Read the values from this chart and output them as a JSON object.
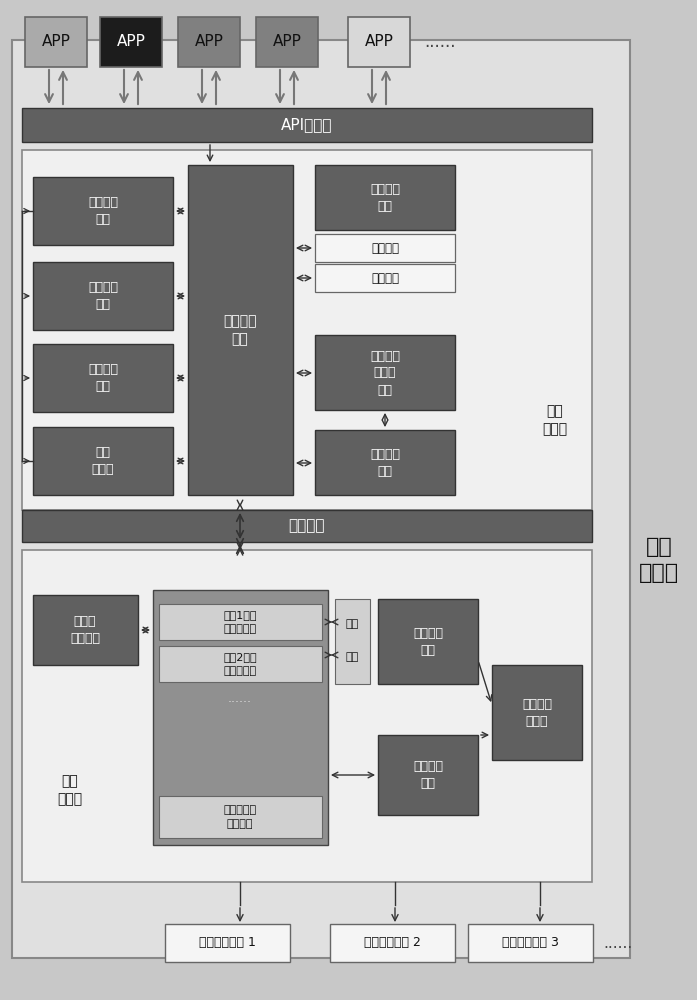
{
  "bg_color": "#c8c8c8",
  "outer_box_color": "#e0e0e0",
  "inner_box_color": "#f0f0f0",
  "dark_box": "#606060",
  "medium_box": "#909090",
  "light_box": "#d0d0d0",
  "white_box": "#f5f5f5",
  "app_colors": [
    "#aaaaaa",
    "#1c1c1c",
    "#808080",
    "#808080",
    "#d8d8d8"
  ],
  "app_labels": [
    "APP",
    "APP",
    "APP",
    "APP",
    "APP"
  ],
  "title": "网络\n控制器",
  "core_layer_label": "核心\n控制层",
  "resource_layer_label": "资源\n虚拟层",
  "api_label": "API函数库",
  "comm_label": "通信接口",
  "left_modules": [
    "业务感知\n模块",
    "业务监测\n模块",
    "性能监测\n模块",
    "资源\n数据库"
  ],
  "center_module": "事件调度\n模块",
  "right_top_module": "分片策略\n模块",
  "sub1": "设备区分",
  "sub2": "业务区分",
  "route_module": "路由与资\n源分配\n模块",
  "policy_module": "策略校验\n模块",
  "multi_biz": "多业务\n管理模块",
  "virt_inner_top1a": "业务1分片",
  "virt_inner_top1b": "视图模拟器",
  "virt_inner_top2a": "业务2分片",
  "virt_inner_top2b": "视图模拟器",
  "virt_dots": "......",
  "virt_bottom_a": "虚拟化资源",
  "virt_bottom_b": "转发模块",
  "dev_label": "设备",
  "biz_label": "业务",
  "slice_policy_bottom": "分片策略\n模块",
  "resource_discovery": "资源发现\n模块",
  "slice_resource_db": "分片资源\n数据库",
  "fwd_devices": [
    "虚拟转发设备 1",
    "虚拟转发设备 2",
    "虚拟转发设备 3"
  ]
}
